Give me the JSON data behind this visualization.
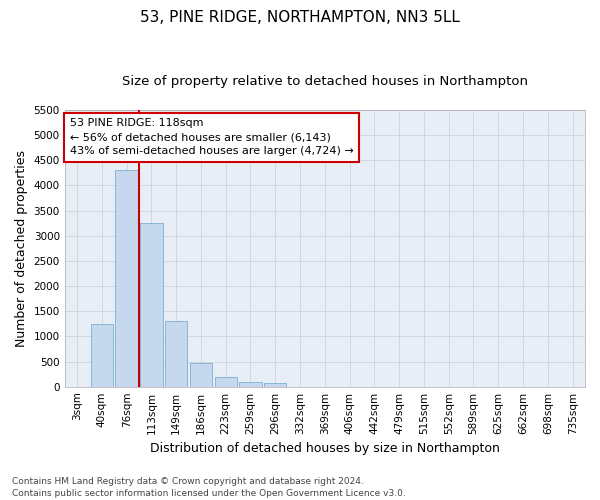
{
  "title": "53, PINE RIDGE, NORTHAMPTON, NN3 5LL",
  "subtitle": "Size of property relative to detached houses in Northampton",
  "xlabel": "Distribution of detached houses by size in Northampton",
  "ylabel": "Number of detached properties",
  "footer_line1": "Contains HM Land Registry data © Crown copyright and database right 2024.",
  "footer_line2": "Contains public sector information licensed under the Open Government Licence v3.0.",
  "categories": [
    "3sqm",
    "40sqm",
    "76sqm",
    "113sqm",
    "149sqm",
    "186sqm",
    "223sqm",
    "259sqm",
    "296sqm",
    "332sqm",
    "369sqm",
    "406sqm",
    "442sqm",
    "479sqm",
    "515sqm",
    "552sqm",
    "589sqm",
    "625sqm",
    "662sqm",
    "698sqm",
    "735sqm"
  ],
  "values": [
    0,
    1250,
    4300,
    3250,
    1300,
    480,
    200,
    100,
    70,
    0,
    0,
    0,
    0,
    0,
    0,
    0,
    0,
    0,
    0,
    0,
    0
  ],
  "bar_color": "#c5d8ed",
  "bar_edge_color": "#7bafd4",
  "vline_x_index": 2.5,
  "vline_color": "#cc0000",
  "annotation_title": "53 PINE RIDGE: 118sqm",
  "annotation_line1": "← 56% of detached houses are smaller (6,143)",
  "annotation_line2": "43% of semi-detached houses are larger (4,724) →",
  "annotation_box_color": "#ffffff",
  "annotation_box_edgecolor": "#cc0000",
  "ylim": [
    0,
    5500
  ],
  "yticks": [
    0,
    500,
    1000,
    1500,
    2000,
    2500,
    3000,
    3500,
    4000,
    4500,
    5000,
    5500
  ],
  "background_color": "#ffffff",
  "grid_color": "#c8d4e0",
  "title_fontsize": 11,
  "subtitle_fontsize": 9.5,
  "axis_label_fontsize": 9,
  "tick_fontsize": 7.5,
  "annotation_fontsize": 8,
  "footer_fontsize": 6.5
}
